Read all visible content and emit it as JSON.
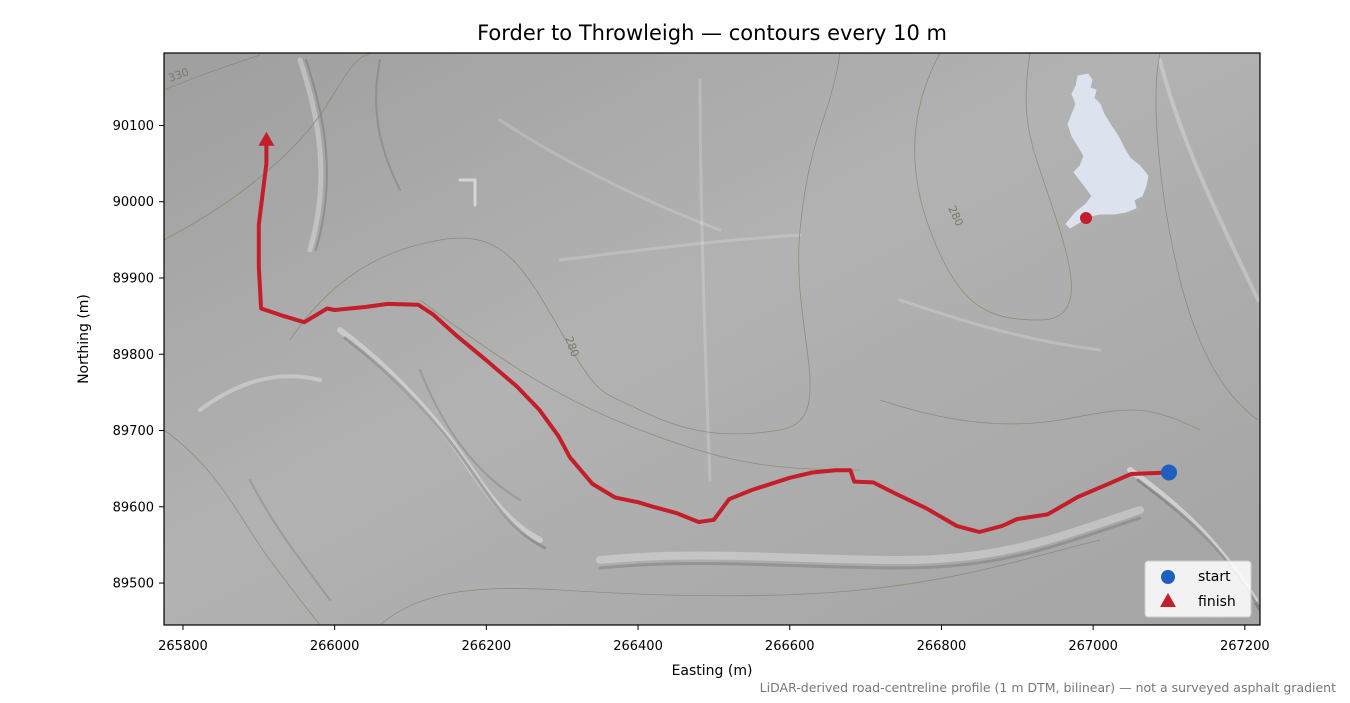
{
  "title": "Forder to Throwleigh — contours every 10 m",
  "xlabel": "Easting (m)",
  "ylabel": "Northing (m)",
  "footnote": "LiDAR-derived road-centreline profile (1 m DTM, bilinear) — not a surveyed asphalt gradient",
  "colors": {
    "route": "#c41e2a",
    "start": "#1f5fbf",
    "finish": "#c41e2a",
    "contour": "#8a8468",
    "hillshade": "#a9a9a9",
    "inset_land": "#dde3ee"
  },
  "legend": {
    "placement": "lower-right",
    "start_label": "start",
    "finish_label": "finish"
  },
  "contour_labels": [
    "330",
    "280",
    "280"
  ],
  "inset": {
    "shape": "UK outline",
    "marker": "red dot (south-west England)"
  },
  "chart_data": {
    "type": "line",
    "xlim": [
      265775,
      267220
    ],
    "ylim": [
      89445,
      90195
    ],
    "xticks": [
      265800,
      266000,
      266200,
      266400,
      266600,
      266800,
      267000,
      267200
    ],
    "yticks": [
      89500,
      89600,
      89700,
      89800,
      89900,
      90000,
      90100
    ],
    "route": {
      "x": [
        267100,
        267050,
        267020,
        266980,
        266940,
        266900,
        266880,
        266850,
        266820,
        266780,
        266740,
        266710,
        266685,
        266680,
        266660,
        266630,
        266600,
        266550,
        266520,
        266500,
        266480,
        266450,
        266420,
        266400,
        266370,
        266340,
        266310,
        266295,
        266270,
        266240,
        266200,
        266160,
        266130,
        266110,
        266070,
        266040,
        266000,
        265990,
        265960,
        265930,
        265903,
        265900,
        265900,
        265905,
        265910,
        265910
      ],
      "y": [
        89645,
        89643,
        89630,
        89613,
        89590,
        89584,
        89575,
        89567,
        89575,
        89598,
        89617,
        89632,
        89633,
        89648,
        89648,
        89645,
        89638,
        89622,
        89610,
        89583,
        89580,
        89592,
        89600,
        89606,
        89612,
        89630,
        89665,
        89693,
        89727,
        89758,
        89792,
        89825,
        89852,
        89865,
        89866,
        89862,
        89858,
        89860,
        89842,
        89851,
        89860,
        89915,
        89970,
        90010,
        90050,
        90080
      ]
    },
    "start": {
      "label": "start",
      "x": 267100,
      "y": 89645
    },
    "finish": {
      "label": "finish",
      "x": 265910,
      "y": 90080
    }
  }
}
